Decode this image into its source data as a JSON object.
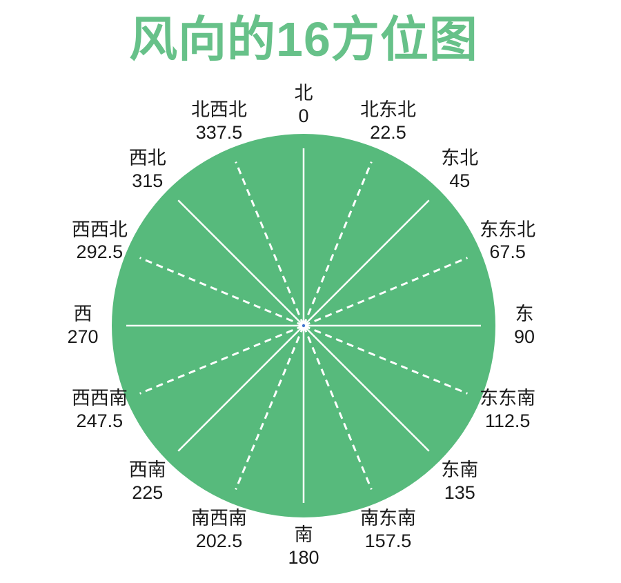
{
  "title": "风向的16方位图",
  "colors": {
    "title": "#67C189",
    "circle_fill": "#57BA7C",
    "line": "#FFFFFF",
    "label_text": "#1A1A1A",
    "center_dot": "#4377D0",
    "background": "#FFFFFF"
  },
  "compass": {
    "directions": [
      {
        "name": "北",
        "degrees": "0",
        "angle": 0,
        "line_style": "solid"
      },
      {
        "name": "北东北",
        "degrees": "22.5",
        "angle": 22.5,
        "line_style": "dashed"
      },
      {
        "name": "东北",
        "degrees": "45",
        "angle": 45,
        "line_style": "solid"
      },
      {
        "name": "东东北",
        "degrees": "67.5",
        "angle": 67.5,
        "line_style": "dashed"
      },
      {
        "name": "东",
        "degrees": "90",
        "angle": 90,
        "line_style": "solid"
      },
      {
        "name": "东东南",
        "degrees": "112.5",
        "angle": 112.5,
        "line_style": "dashed"
      },
      {
        "name": "东南",
        "degrees": "135",
        "angle": 135,
        "line_style": "solid"
      },
      {
        "name": "南东南",
        "degrees": "157.5",
        "angle": 157.5,
        "line_style": "dashed"
      },
      {
        "name": "南",
        "degrees": "180",
        "angle": 180,
        "line_style": "solid"
      },
      {
        "name": "南西南",
        "degrees": "202.5",
        "angle": 202.5,
        "line_style": "dashed"
      },
      {
        "name": "西南",
        "degrees": "225",
        "angle": 225,
        "line_style": "solid"
      },
      {
        "name": "西西南",
        "degrees": "247.5",
        "angle": 247.5,
        "line_style": "dashed"
      },
      {
        "name": "西",
        "degrees": "270",
        "angle": 270,
        "line_style": "solid"
      },
      {
        "name": "西西北",
        "degrees": "292.5",
        "angle": 292.5,
        "line_style": "dashed"
      },
      {
        "name": "西北",
        "degrees": "315",
        "angle": 315,
        "line_style": "solid"
      },
      {
        "name": "北西北",
        "degrees": "337.5",
        "angle": 337.5,
        "line_style": "dashed"
      }
    ]
  }
}
